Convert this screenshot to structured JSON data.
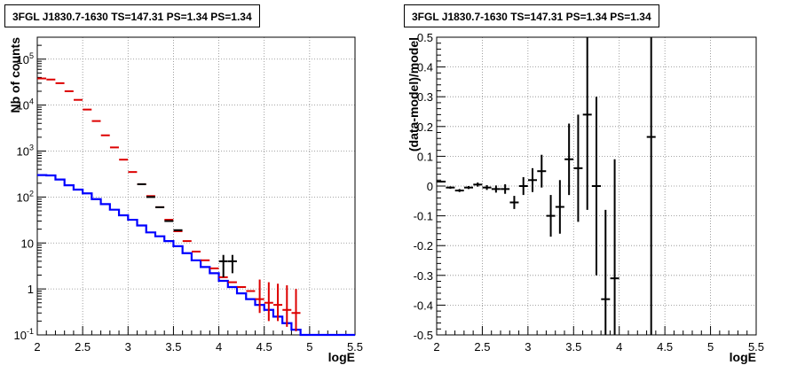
{
  "chart_data": [
    {
      "type": "line",
      "title": "3FGL J1830.7-1630 TS=147.31 PS=1.34 PS=1.34",
      "xlabel": "logE",
      "ylabel": "Nb of counts",
      "xlim": [
        2,
        5.5
      ],
      "ylim": [
        0.1,
        300000
      ],
      "log_y": true,
      "grid": true,
      "x_ticks": [
        "2",
        "2.5",
        "3",
        "3.5",
        "4",
        "4.5",
        "5",
        "5.5"
      ],
      "y_ticks": [
        "10^-1",
        "1",
        "10",
        "10^2",
        "10^3",
        "10^4",
        "10^5"
      ],
      "bin_edges": [
        2.0,
        2.1,
        2.2,
        2.3,
        2.4,
        2.5,
        2.6,
        2.7,
        2.8,
        2.9,
        3.0,
        3.1,
        3.2,
        3.3,
        3.4,
        3.5,
        3.6,
        3.7,
        3.8,
        3.9,
        4.0,
        4.1,
        4.2,
        4.3,
        4.4,
        4.5,
        4.6,
        4.7,
        4.8,
        4.9,
        5.0,
        5.1,
        5.2,
        5.3,
        5.4,
        5.5
      ],
      "series": [
        {
          "color": "#0000ff",
          "style": "step",
          "values": [
            300,
            295,
            240,
            180,
            145,
            120,
            90,
            70,
            53,
            40,
            32,
            24,
            17,
            14,
            11,
            8.5,
            6,
            4.2,
            3,
            2.2,
            1.5,
            1.1,
            0.8,
            0.6,
            0.45,
            0.35,
            0.25,
            0.18,
            0.13,
            0.1,
            0.1,
            0.1,
            0.1,
            0.1,
            0.1
          ]
        },
        {
          "color": "#dd0000",
          "style": "points",
          "x": [
            2.05,
            2.15,
            2.25,
            2.35,
            2.45,
            2.55,
            2.65,
            2.75,
            2.85,
            2.95,
            3.05,
            3.15,
            3.25,
            3.35,
            3.45,
            3.55,
            3.65,
            3.75,
            3.85,
            3.95,
            4.05,
            4.15,
            4.25,
            4.35,
            4.45,
            4.55,
            4.65,
            4.75,
            4.85
          ],
          "y": [
            38000,
            36000,
            30000,
            20000,
            13000,
            8000,
            4500,
            2200,
            1200,
            650,
            350,
            190,
            105,
            60,
            32,
            18,
            11,
            6.5,
            4.2,
            2.8,
            1.8,
            1.4,
            1.1,
            0.9,
            0.6,
            0.5,
            0.45,
            0.35,
            0.3
          ],
          "ylo": [
            38000,
            36000,
            30000,
            20000,
            13000,
            8000,
            4500,
            2200,
            1200,
            650,
            350,
            190,
            105,
            60,
            32,
            18,
            11,
            6.5,
            4.2,
            2.8,
            1.8,
            1.4,
            1.1,
            0.9,
            0.3,
            0.2,
            0.2,
            0.15,
            0.12
          ],
          "yhi": [
            38000,
            36000,
            30000,
            20000,
            13000,
            8000,
            4500,
            2200,
            1200,
            650,
            350,
            190,
            105,
            60,
            32,
            18,
            11,
            6.5,
            4.2,
            2.8,
            1.8,
            1.4,
            1.1,
            0.9,
            1.6,
            1.4,
            1.3,
            1.2,
            1.0
          ]
        },
        {
          "color": "#000000",
          "style": "points",
          "x": [
            3.15,
            3.25,
            3.35,
            3.45,
            3.55,
            4.05,
            4.15
          ],
          "y": [
            190,
            100,
            60,
            30,
            19,
            4,
            4
          ],
          "ylo": [
            190,
            100,
            60,
            30,
            19,
            1.8,
            2.2
          ],
          "yhi": [
            190,
            100,
            60,
            30,
            19,
            5.5,
            5.5
          ]
        }
      ]
    },
    {
      "type": "scatter",
      "title": "3FGL J1830.7-1630 TS=147.31 PS=1.34 PS=1.34",
      "xlabel": "logE",
      "ylabel": "(data-model)/model",
      "xlim": [
        2,
        5.5
      ],
      "ylim": [
        -0.5,
        0.5
      ],
      "grid": true,
      "x_ticks": [
        "2",
        "2.5",
        "3",
        "3.5",
        "4",
        "4.5",
        "5",
        "5.5"
      ],
      "y_ticks": [
        "-0.5",
        "-0.4",
        "-0.3",
        "-0.2",
        "-0.1",
        "0",
        "0.1",
        "0.2",
        "0.3",
        "0.4",
        "0.5"
      ],
      "points": [
        {
          "x": 2.05,
          "y": 0.015,
          "err": 0.003
        },
        {
          "x": 2.15,
          "y": -0.005,
          "err": 0.004
        },
        {
          "x": 2.25,
          "y": -0.015,
          "err": 0.005
        },
        {
          "x": 2.35,
          "y": -0.005,
          "err": 0.005
        },
        {
          "x": 2.45,
          "y": 0.005,
          "err": 0.007
        },
        {
          "x": 2.55,
          "y": -0.005,
          "err": 0.008
        },
        {
          "x": 2.65,
          "y": -0.01,
          "err": 0.012
        },
        {
          "x": 2.75,
          "y": -0.01,
          "err": 0.016
        },
        {
          "x": 2.85,
          "y": -0.055,
          "err": 0.022
        },
        {
          "x": 2.95,
          "y": 0.0,
          "err": 0.03
        },
        {
          "x": 3.05,
          "y": 0.02,
          "err": 0.04
        },
        {
          "x": 3.15,
          "y": 0.05,
          "err": 0.055
        },
        {
          "x": 3.25,
          "y": -0.1,
          "err": 0.07
        },
        {
          "x": 3.35,
          "y": -0.07,
          "err": 0.09
        },
        {
          "x": 3.45,
          "y": 0.09,
          "err": 0.12
        },
        {
          "x": 3.55,
          "y": 0.06,
          "err": 0.18
        },
        {
          "x": 3.65,
          "y": 0.24,
          "err": 0.32
        },
        {
          "x": 3.75,
          "y": 0.0,
          "err": 0.3
        },
        {
          "x": 3.85,
          "y": -0.38,
          "err": 0.3
        },
        {
          "x": 3.95,
          "y": -0.31,
          "err": 0.4
        },
        {
          "x": 4.35,
          "y": 0.165,
          "err": 0.8
        }
      ]
    }
  ]
}
